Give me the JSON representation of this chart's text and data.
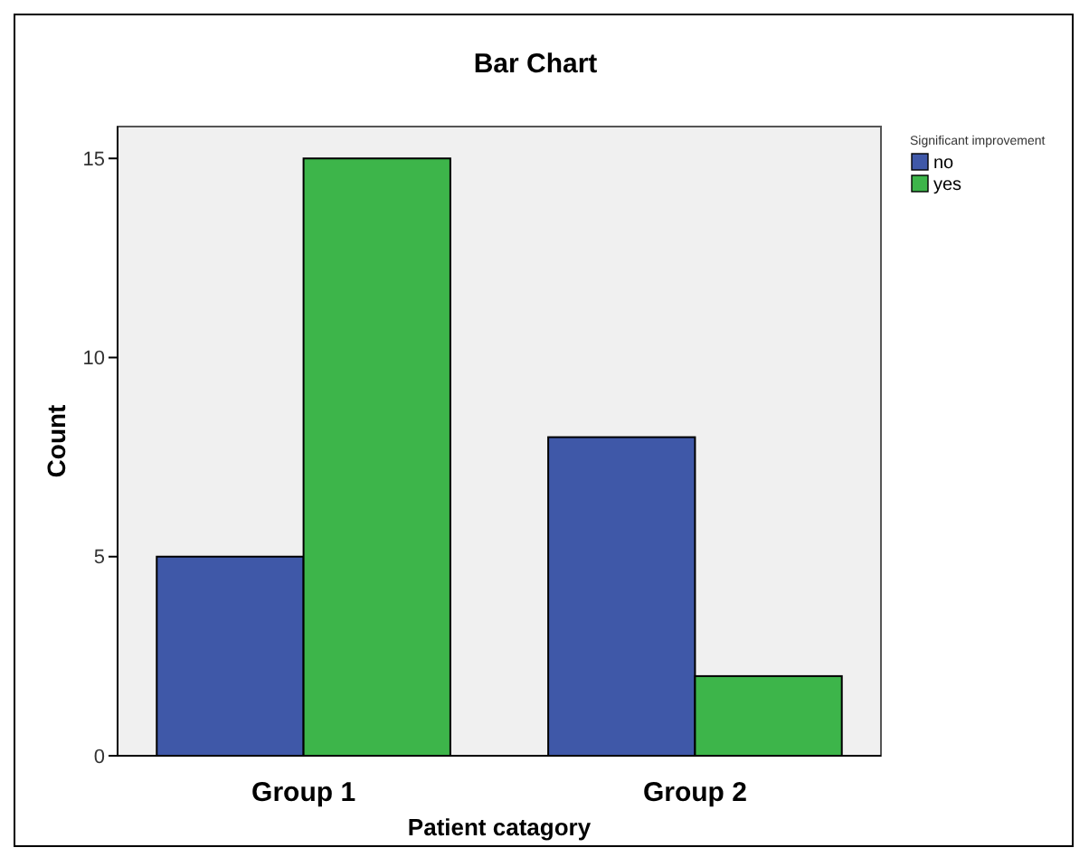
{
  "chart_data": {
    "type": "bar",
    "title": "Bar Chart",
    "xlabel": "Patient catagory",
    "ylabel": "Count",
    "legend_title": "Significant improvement",
    "categories": [
      "Group 1",
      "Group 2"
    ],
    "series": [
      {
        "name": "no",
        "color": "#3f58a8",
        "values": [
          5,
          8
        ]
      },
      {
        "name": "yes",
        "color": "#3db54a",
        "values": [
          15,
          2
        ]
      }
    ],
    "ylim": [
      0,
      15.8
    ],
    "yticks": [
      0,
      5,
      10,
      15
    ],
    "grid": false,
    "legend": "top right"
  }
}
